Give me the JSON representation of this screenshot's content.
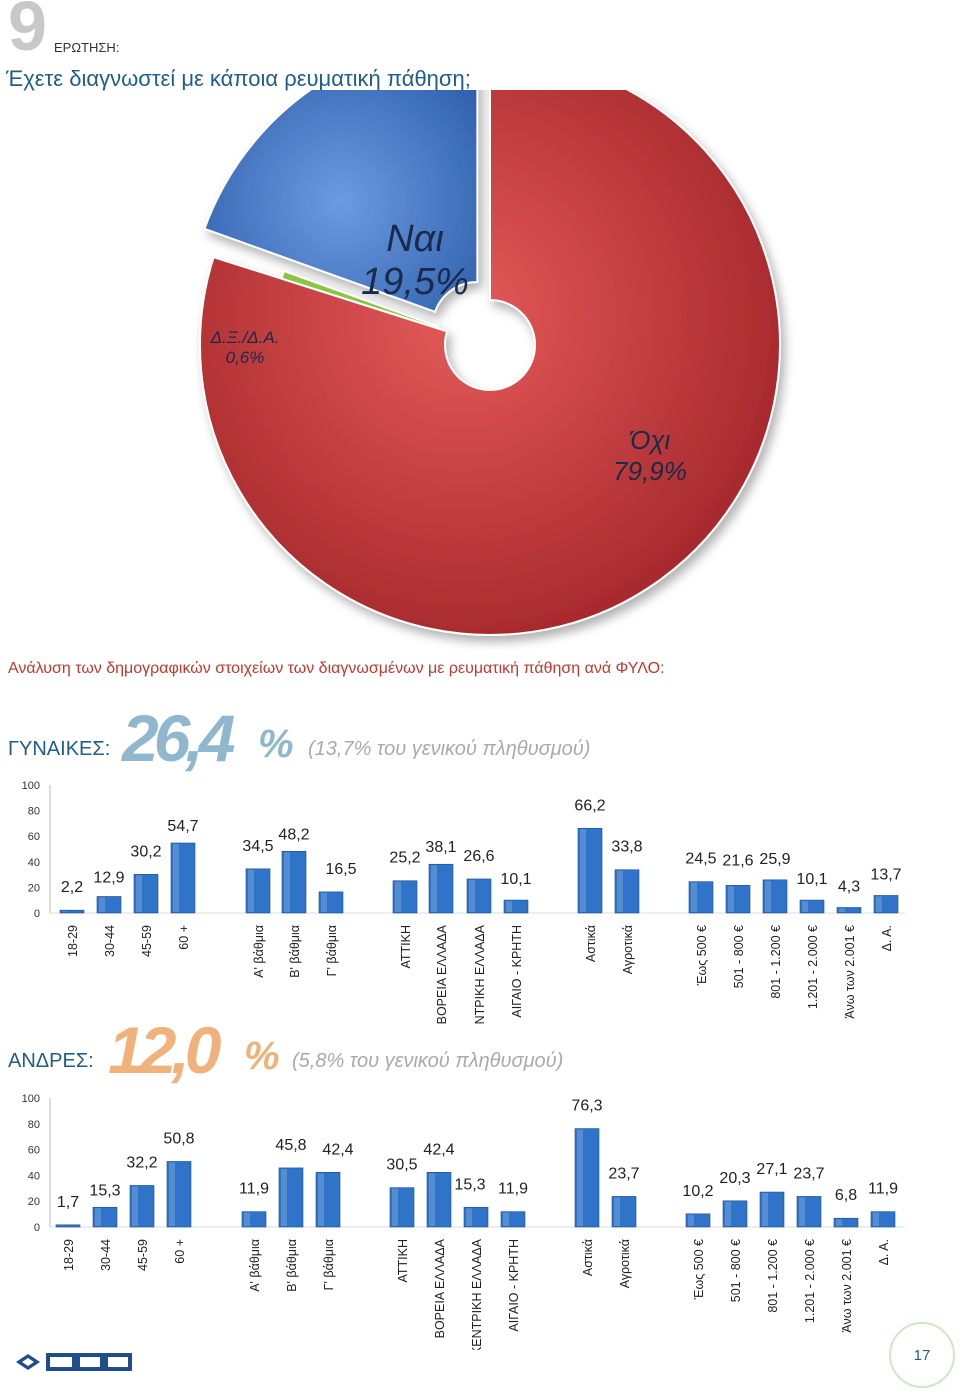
{
  "header": {
    "number": "9",
    "label": "ΕΡΩΤΗΣΗ:",
    "question": "Έχετε διαγνωστεί με κάποια ρευματική πάθηση;"
  },
  "pie_labels": {
    "yes_name": "Ναι",
    "yes_value": "19,5%",
    "no_name": "Όχι",
    "no_value": "79,9%",
    "dk_name": "Δ.Ξ./Δ.Α.",
    "dk_value": "0,6%"
  },
  "analysis_title": "Ανάλυση των δημογραφικών στοιχείων των διαγνωσμένων με ρευματική πάθηση ανά ΦΥΛΟ:",
  "women": {
    "label": "ΓΥΝΑΙΚΕΣ:",
    "percent": "26,4",
    "percent_sign": "%",
    "sub": "(13,7% του γενικού πληθυσμού)"
  },
  "men": {
    "label": "ΑΝΔΡΕΣ:",
    "percent": "12,0",
    "percent_sign": "%",
    "sub": "(5,8% του γενικού πληθυσμού)"
  },
  "page_number": "17",
  "colors": {
    "yes": "#3d74c4",
    "no": "#c9393c",
    "dk": "#8cc63f",
    "bar": "#2f74c8",
    "women_pct": "#8fb8cf",
    "men_pct": "#f0b27a"
  },
  "chart_data": [
    {
      "type": "pie",
      "categories": [
        "Ναι",
        "Όχι",
        "Δ.Ξ./Δ.Α."
      ],
      "values": [
        19.5,
        79.9,
        0.6
      ]
    },
    {
      "type": "bar",
      "title": "ΓΥΝΑΙΚΕΣ",
      "ylim": [
        0,
        100
      ],
      "yticks": [
        0,
        20,
        40,
        60,
        80,
        100
      ],
      "categories": [
        "18-29",
        "30-44",
        "45-59",
        "60 +",
        "Α' βάθμια",
        "Β' βάθμια",
        "Γ' βάθμια",
        "ΑΤΤΙΚΗ",
        "ΒΟΡΕΙΑ ΕΛΛΑΔΑ",
        "ΚΕΝΤΡΙΚΗ ΕΛΛΑΔΑ",
        "ΑΙΓΑΙΟ - ΚΡΗΤΗ",
        "Αστικά",
        "Αγροτικά",
        "Έως 500 €",
        "501 - 800 €",
        "801 - 1.200 €",
        "1.201 - 2.000 €",
        "Άνω των 2.001 €",
        "Δ. Α."
      ],
      "values": [
        2.2,
        12.9,
        30.2,
        54.7,
        34.5,
        48.2,
        16.5,
        25.2,
        38.1,
        26.6,
        10.1,
        66.2,
        33.8,
        24.5,
        21.6,
        25.9,
        10.1,
        4.3,
        13.7
      ],
      "labels": [
        "2,2",
        "12,9",
        "30,2",
        "54,7",
        "34,5",
        "48,2",
        "16,5",
        "25,2",
        "38,1",
        "26,6",
        "10,1",
        "66,2",
        "33,8",
        "24,5",
        "21,6",
        "25,9",
        "10,1",
        "4,3",
        "13,7"
      ]
    },
    {
      "type": "bar",
      "title": "ΑΝΔΡΕΣ",
      "ylim": [
        0,
        100
      ],
      "yticks": [
        0,
        20,
        40,
        60,
        80,
        100
      ],
      "categories": [
        "18-29",
        "30-44",
        "45-59",
        "60 +",
        "Α' βάθμια",
        "Β' βάθμια",
        "Γ' βάθμια",
        "ΑΤΤΙΚΗ",
        "ΒΟΡΕΙΑ ΕΛΛΑΔΑ",
        "ΚΕΝΤΡΙΚΗ ΕΛΛΑΔΑ",
        "ΑΙΓΑΙΟ - ΚΡΗΤΗ",
        "Αστικά",
        "Αγροτικά",
        "Έως 500 €",
        "501 - 800 €",
        "801 - 1.200 €",
        "1.201 - 2.000 €",
        "Άνω των 2.001 €",
        "Δ. Α."
      ],
      "values": [
        1.7,
        15.3,
        32.2,
        50.8,
        11.9,
        45.8,
        42.4,
        30.5,
        42.4,
        15.3,
        11.9,
        76.3,
        23.7,
        10.2,
        20.3,
        27.1,
        23.7,
        6.8,
        11.9
      ],
      "labels": [
        "1,7",
        "15,3",
        "32,2",
        "50,8",
        "11,9",
        "45,8",
        "42,4",
        "30,5",
        "42,4",
        "15,3",
        "11,9",
        "76,3",
        "23,7",
        "10,2",
        "20,3",
        "27,1",
        "23,7",
        "6,8",
        "11,9"
      ]
    }
  ]
}
